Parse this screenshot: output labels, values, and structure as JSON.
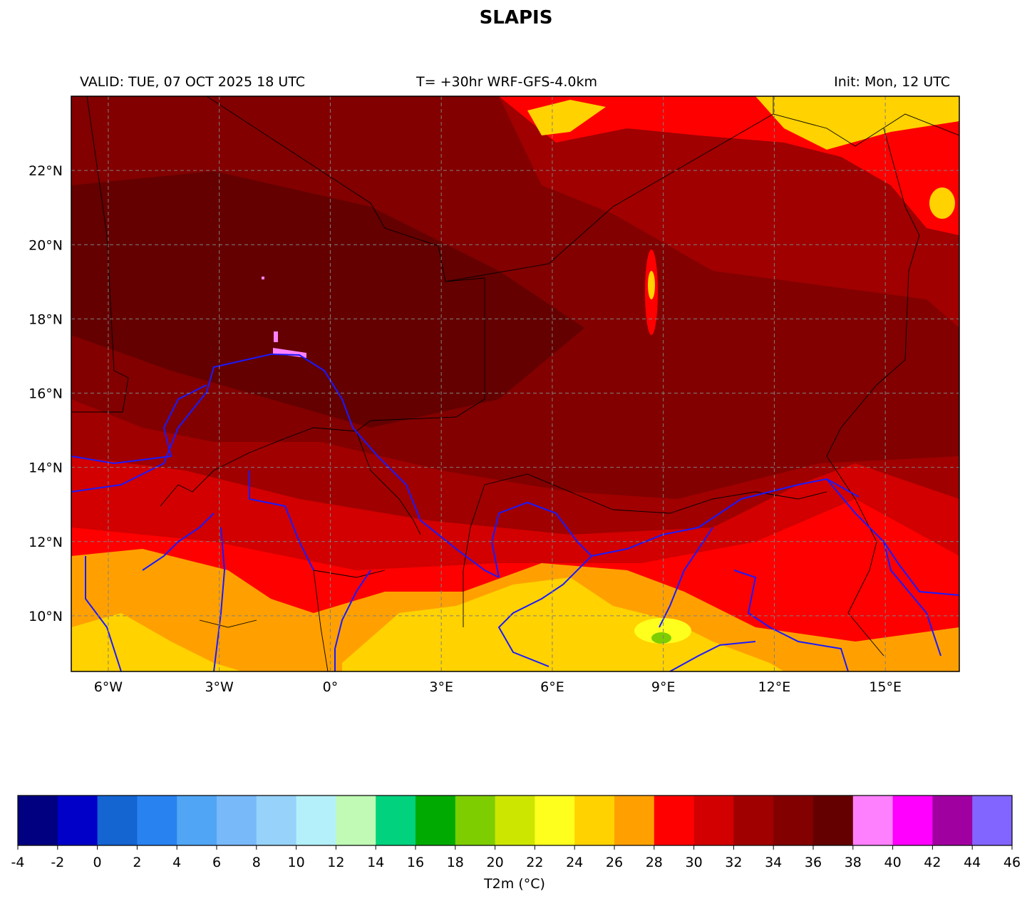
{
  "title": "SLAPIS",
  "header": {
    "valid": "VALID: TUE, 07 OCT 2025 18 UTC",
    "forecast": "T= +30hr WRF-GFS-4.0km",
    "init": "Init: Mon, 12 UTC"
  },
  "map": {
    "lon_range": [
      -7,
      17
    ],
    "lat_range": [
      8.5,
      24
    ],
    "lon_ticks": [
      {
        "value": -6,
        "label": "6°W"
      },
      {
        "value": -3,
        "label": "3°W"
      },
      {
        "value": 0,
        "label": "0°"
      },
      {
        "value": 3,
        "label": "3°E"
      },
      {
        "value": 6,
        "label": "6°E"
      },
      {
        "value": 9,
        "label": "9°E"
      },
      {
        "value": 12,
        "label": "12°E"
      },
      {
        "value": 15,
        "label": "15°E"
      }
    ],
    "lat_ticks": [
      {
        "value": 22,
        "label": "22°N"
      },
      {
        "value": 20,
        "label": "20°N"
      },
      {
        "value": 18,
        "label": "18°N"
      },
      {
        "value": 16,
        "label": "16°N"
      },
      {
        "value": 14,
        "label": "14°N"
      },
      {
        "value": 12,
        "label": "12°N"
      },
      {
        "value": 10,
        "label": "10°N"
      }
    ],
    "gridlines": "dashed",
    "river_color": "#1a1aff",
    "border_color": "#000000"
  },
  "colorbar": {
    "label": "T2m (°C)",
    "ticks": [
      "-4",
      "-2",
      "0",
      "2",
      "4",
      "6",
      "8",
      "10",
      "12",
      "14",
      "16",
      "18",
      "20",
      "22",
      "24",
      "26",
      "28",
      "30",
      "32",
      "34",
      "36",
      "38",
      "40",
      "42",
      "44",
      "46"
    ],
    "colors": [
      "#000080",
      "#0000c8",
      "#1464d2",
      "#2882f0",
      "#50a5f5",
      "#78b9fa",
      "#96d2fa",
      "#b4f0fa",
      "#c0fab4",
      "#00d27d",
      "#00aa00",
      "#7dcd00",
      "#cde600",
      "#ffff1e",
      "#ffd200",
      "#ffa000",
      "#ff0000",
      "#d20000",
      "#a00000",
      "#820000",
      "#640000",
      "#ff80ff",
      "#ff00ff",
      "#a000a0",
      "#8264ff"
    ]
  }
}
